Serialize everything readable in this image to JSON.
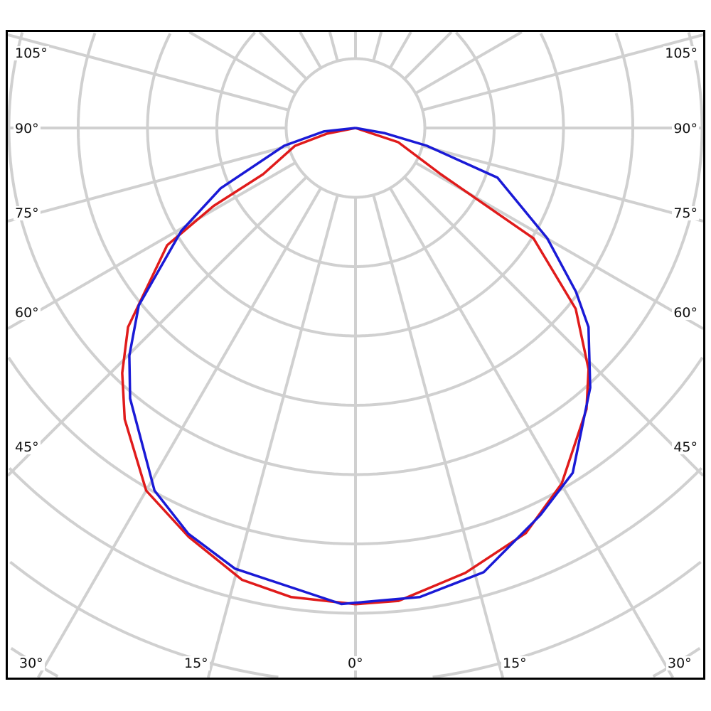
{
  "chart_data": {
    "type": "polar-line",
    "title": "",
    "angle_unit": "degrees",
    "angle_zero": "bottom",
    "radial_grid_rings": 10,
    "angular_grid_step": 15,
    "grid": true,
    "angle_labels": {
      "left": [
        "105°",
        "90°",
        "75°",
        "60°",
        "45°"
      ],
      "right": [
        "105°",
        "90°",
        "75°",
        "60°",
        "45°"
      ],
      "bottom": [
        "30°",
        "15°",
        "0°",
        "15°",
        "30°"
      ]
    },
    "series": [
      {
        "color": "#e01b1b",
        "points": [
          [
            -90,
            0
          ],
          [
            -78.7,
            0.42
          ],
          [
            -73.6,
            0.91
          ],
          [
            -63.4,
            1.49
          ],
          [
            -61.2,
            2.34
          ],
          [
            -58.1,
            3.2
          ],
          [
            -48.8,
            4.36
          ],
          [
            -43.6,
            4.88
          ],
          [
            -38.4,
            5.36
          ],
          [
            -30,
            6.04
          ],
          [
            -22.2,
            6.37
          ],
          [
            -14.1,
            6.72
          ],
          [
            -7.8,
            6.83
          ],
          [
            0,
            6.87
          ],
          [
            5.2,
            6.85
          ],
          [
            13.9,
            6.61
          ],
          [
            22.8,
            6.34
          ],
          [
            30.1,
            5.93
          ],
          [
            39.4,
            5.25
          ],
          [
            44,
            4.84
          ],
          [
            50.6,
            4.11
          ],
          [
            58.2,
            3.02
          ],
          [
            61.6,
            1.39
          ],
          [
            71.6,
            0.65
          ],
          [
            90,
            0
          ]
        ]
      },
      {
        "color": "#1a1ad6",
        "points": [
          [
            -90,
            0
          ],
          [
            -83.7,
            0.46
          ],
          [
            -76,
            1.06
          ],
          [
            -65.9,
            2.13
          ],
          [
            -59.4,
            2.92
          ],
          [
            -50.7,
            4.04
          ],
          [
            -44.8,
            4.63
          ],
          [
            -39.8,
            5.08
          ],
          [
            -29,
            5.98
          ],
          [
            -22.4,
            6.33
          ],
          [
            -15.3,
            6.59
          ],
          [
            -1.7,
            6.87
          ],
          [
            7.8,
            6.83
          ],
          [
            16.1,
            6.67
          ],
          [
            25.5,
            6.19
          ],
          [
            32.2,
            5.88
          ],
          [
            42.1,
            5.05
          ],
          [
            49.5,
            4.42
          ],
          [
            53.4,
            3.96
          ],
          [
            60.1,
            3.19
          ],
          [
            70.7,
            2.17
          ],
          [
            76,
            1.06
          ],
          [
            80,
            0.42
          ],
          [
            90,
            0
          ]
        ]
      }
    ]
  }
}
